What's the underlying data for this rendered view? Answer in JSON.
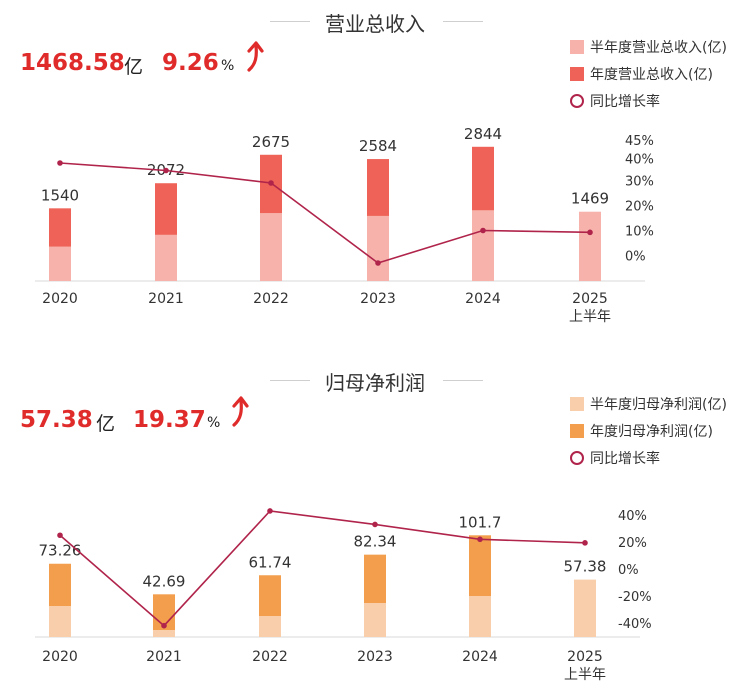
{
  "revenue": {
    "title": "营业总收入",
    "kpi_value": "1468.58",
    "kpi_unit": "亿",
    "kpi_growth": "9.26",
    "kpi_pct_sign": "%",
    "legend": {
      "half": "半年度营业总收入(亿)",
      "annual": "年度营业总收入(亿)",
      "yoy": "同比增长率"
    },
    "colors": {
      "half": "#f7b3ab",
      "annual": "#ee6257",
      "line": "#b0244b",
      "kpi": "#e02b2b"
    }
  },
  "profit": {
    "title": "归母净利润",
    "kpi_value": "57.38",
    "kpi_unit": "亿",
    "kpi_growth": "19.37",
    "kpi_pct_sign": "%",
    "legend": {
      "half": "半年度归母净利润(亿)",
      "annual": "年度归母净利润(亿)",
      "yoy": "同比增长率"
    },
    "colors": {
      "half": "#f8cfaa",
      "annual": "#f29e4c",
      "line": "#b0244b",
      "kpi": "#e02b2b"
    }
  },
  "chart_data": [
    {
      "type": "bar",
      "title": "营业总收入",
      "categories": [
        "2020",
        "2021",
        "2022",
        "2023",
        "2024",
        "2025\n上半年"
      ],
      "series": [
        {
          "name": "半年度营业总收入(亿)",
          "values": [
            730,
            980,
            1440,
            1380,
            1500,
            1468.58
          ]
        },
        {
          "name": "年度营业总收入(亿)",
          "values": [
            1540,
            2072,
            2675,
            2584,
            2844,
            null
          ]
        },
        {
          "name": "同比增长率",
          "values": [
            37,
            34,
            29,
            -3,
            10,
            9.26
          ],
          "axis": "right",
          "kind": "line"
        }
      ],
      "data_labels": [
        "1540",
        "2072",
        "2675",
        "2584",
        "2844",
        "1469"
      ],
      "ylim": [
        0,
        3200
      ],
      "y2_ticks": [
        "0%",
        "10%",
        "20%",
        "30%",
        "40%",
        "45%"
      ],
      "y2lim": [
        -5,
        45
      ]
    },
    {
      "type": "bar",
      "title": "归母净利润",
      "categories": [
        "2020",
        "2021",
        "2022",
        "2023",
        "2024",
        "2025\n上半年"
      ],
      "series": [
        {
          "name": "半年度归母净利润(亿)",
          "values": [
            31,
            7,
            21,
            34,
            41,
            57.38
          ]
        },
        {
          "name": "年度归母净利润(亿)",
          "values": [
            73.26,
            42.69,
            61.74,
            82.34,
            101.7,
            null
          ]
        },
        {
          "name": "同比增长率",
          "values": [
            25,
            -42,
            43,
            33,
            22,
            19.37
          ],
          "axis": "right",
          "kind": "line"
        }
      ],
      "data_labels": [
        "73.26",
        "42.69",
        "61.74",
        "82.34",
        "101.7",
        "57.38"
      ],
      "ylim": [
        0,
        140
      ],
      "y2_ticks": [
        "-40%",
        "-20%",
        "0%",
        "20%",
        "40%"
      ],
      "y2lim": [
        -40,
        40
      ]
    }
  ]
}
